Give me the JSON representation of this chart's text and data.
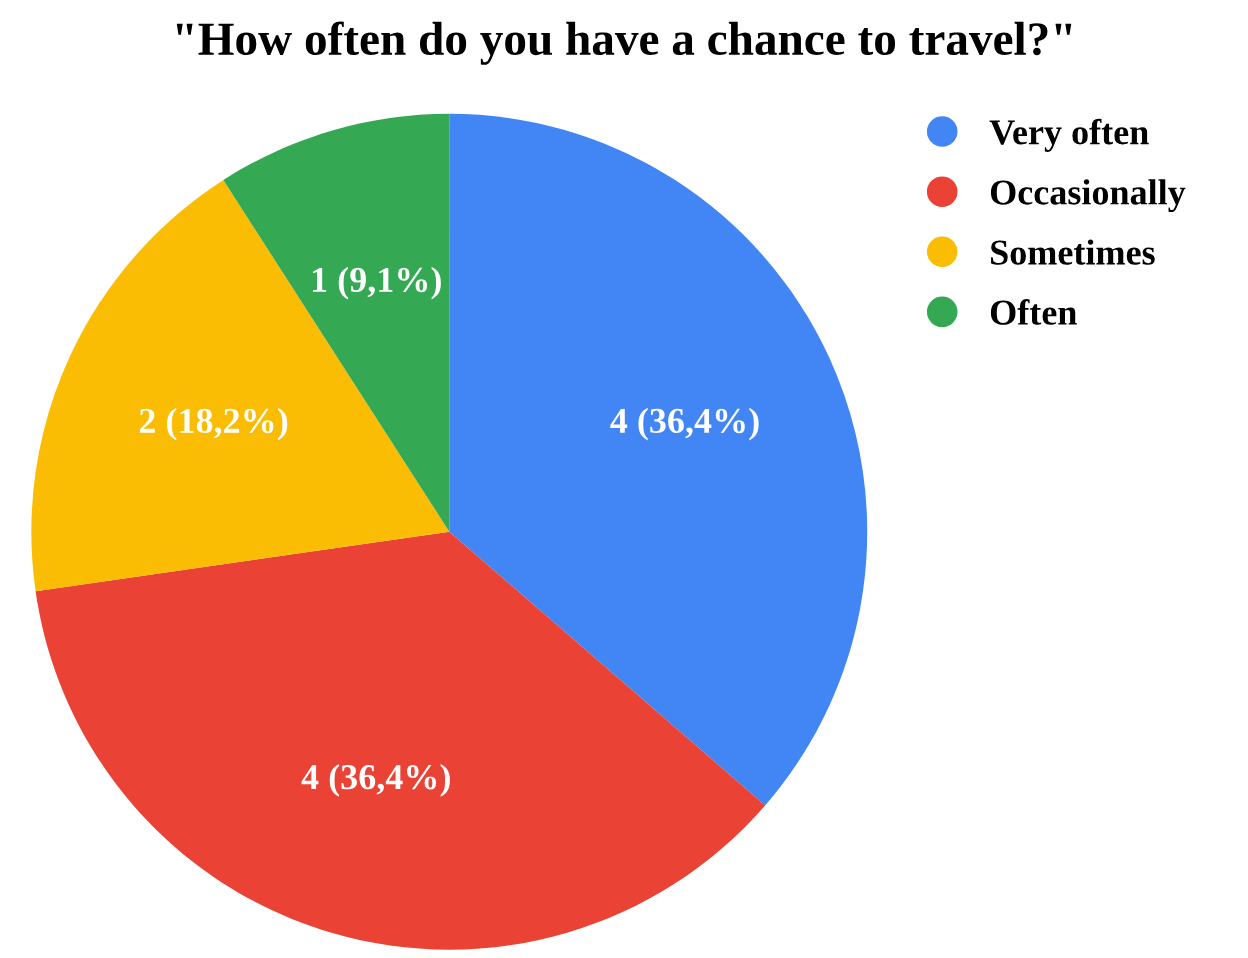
{
  "chart_data": {
    "type": "pie",
    "title": "\"How often do you have a chance to travel?\"",
    "categories": [
      "Very often",
      "Occasionally",
      "Sometimes",
      "Often"
    ],
    "values": [
      4,
      4,
      2,
      1
    ],
    "colors": [
      "#4285f4",
      "#ea4335",
      "#fbbc04",
      "#34a853"
    ],
    "value_labels": [
      "4 (36,4%)",
      "4 (36,4%)",
      "2 (18,2%)",
      "1 (9,1%)"
    ],
    "legend": "top right"
  }
}
